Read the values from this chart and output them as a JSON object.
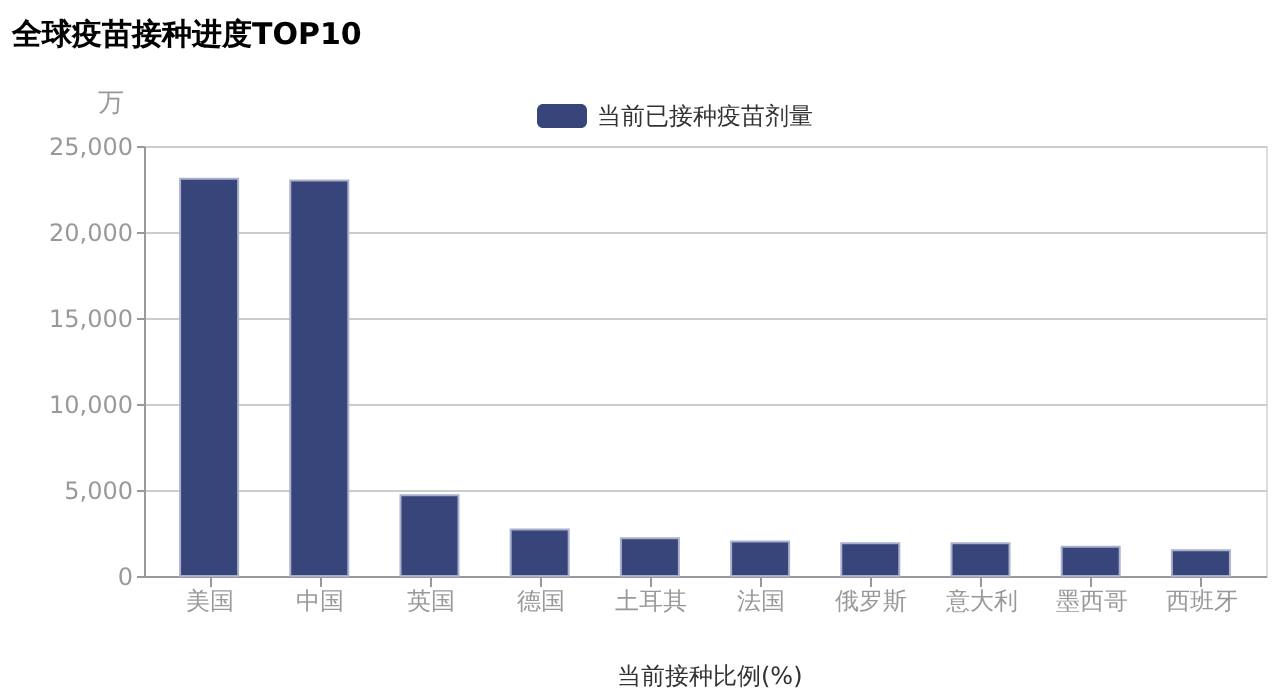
{
  "chart_data": {
    "type": "bar",
    "title": "全球疫苗接种进度TOP10",
    "ylabel": "万",
    "categories": [
      "美国",
      "中国",
      "英国",
      "德国",
      "土耳其",
      "法国",
      "俄罗斯",
      "意大利",
      "墨西哥",
      "西班牙"
    ],
    "series": [
      {
        "name": "当前已接种疫苗剂量",
        "color": "#38457a",
        "values": [
          23100,
          23000,
          4700,
          2700,
          2200,
          2000,
          1900,
          1900,
          1700,
          1500
        ]
      }
    ],
    "annotations": [
      "当前接种比例(%)"
    ],
    "ylim": [
      0,
      25000
    ],
    "yticks": [
      0,
      {
        "value": 5000,
        "label": "5,000"
      },
      {
        "value": 10000,
        "label": "10,000"
      },
      {
        "value": 15000,
        "label": "15,000"
      },
      {
        "value": 20000,
        "label": "20,000"
      },
      {
        "value": 25000,
        "label": "25,000"
      }
    ],
    "grid": "y",
    "legend": "top"
  }
}
